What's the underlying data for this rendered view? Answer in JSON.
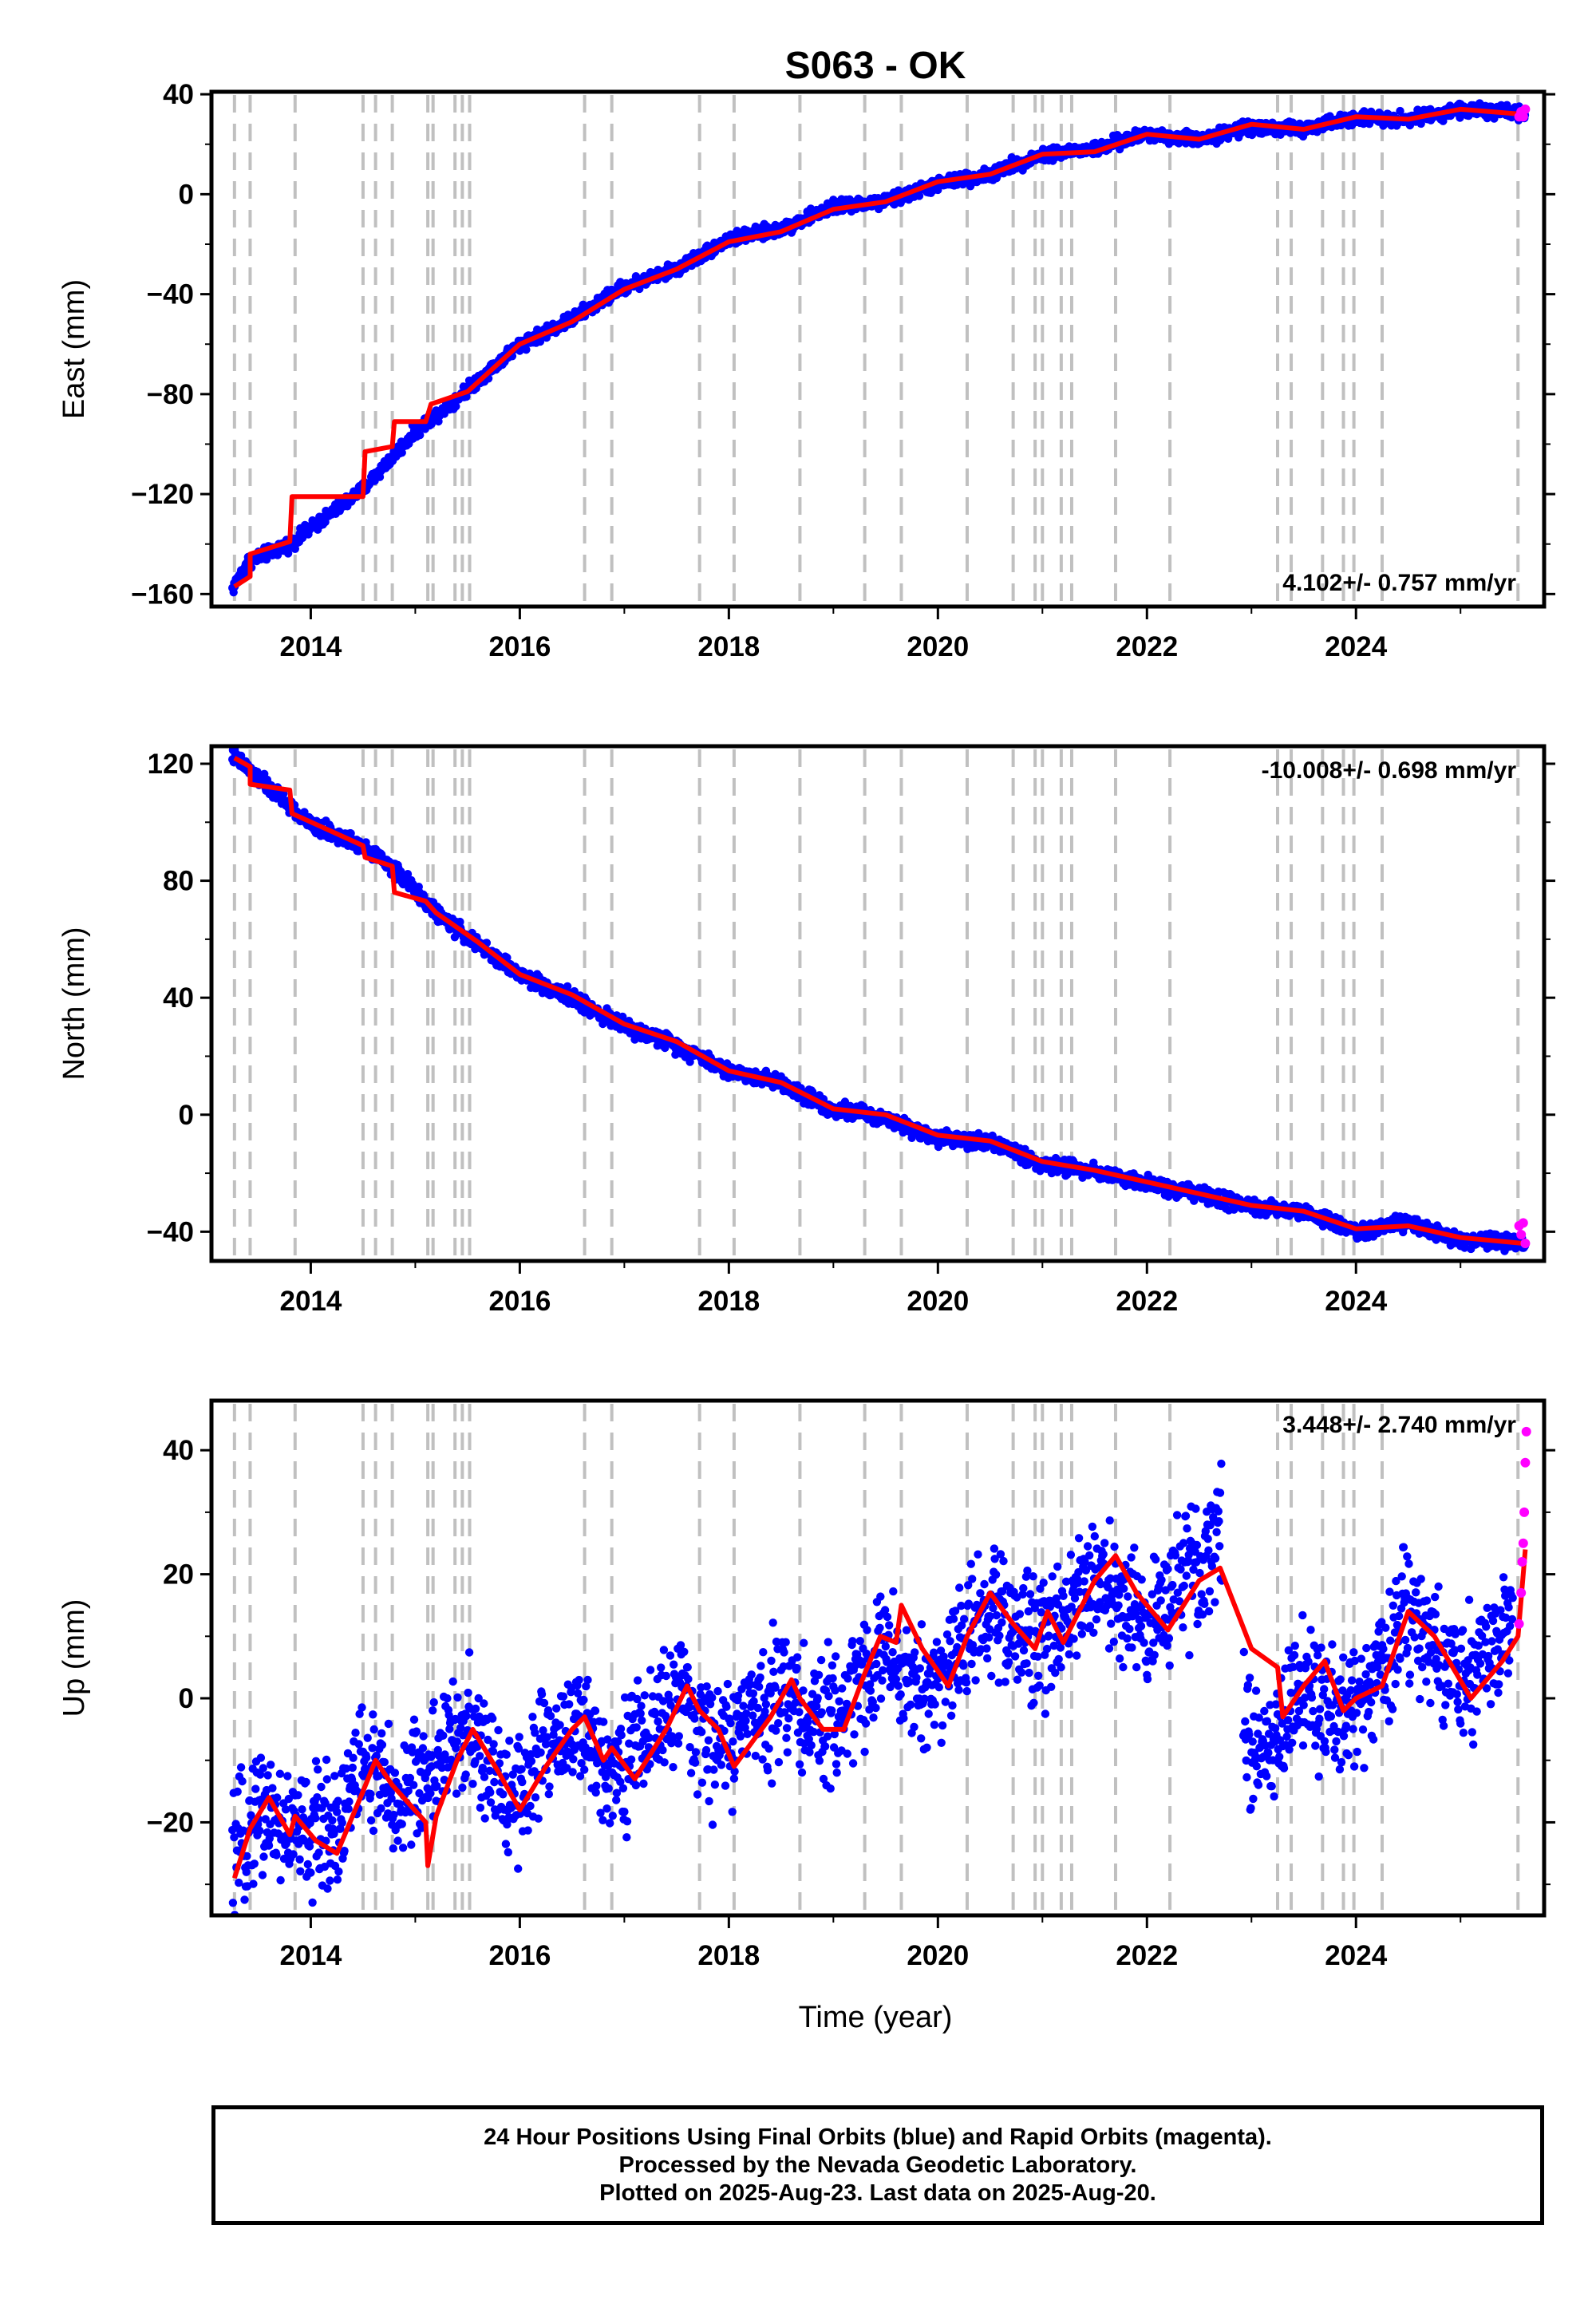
{
  "title": "S063 - OK",
  "xlabel": "Time (year)",
  "footer": {
    "line1": "24 Hour Positions Using Final Orbits (blue) and Rapid Orbits (magenta).",
    "line2": "Processed by the Nevada Geodetic Laboratory.",
    "line3": "Plotted on 2025-Aug-23. Last data on 2025-Aug-20."
  },
  "colors": {
    "final": "#0000ff",
    "rapid": "#ff00ff",
    "model": "#ff0000",
    "event_line": "#c0c0c0"
  },
  "chart_data": [
    {
      "type": "scatter",
      "component": "East",
      "ylabel": "East (mm)",
      "rate_label": "4.102+/- 0.757 mm/yr",
      "xlim": [
        2013.05,
        2025.8
      ],
      "ylim": [
        -165,
        41
      ],
      "xticks": [
        2014,
        2016,
        2018,
        2020,
        2022,
        2024
      ],
      "yticks": [
        -160,
        -120,
        -80,
        -40,
        0,
        40
      ],
      "final_orbit_trend": {
        "x": [
          2013.25,
          2013.4,
          2013.8,
          2014.5,
          2015.0,
          2015.5,
          2016.0,
          2016.5,
          2017.0,
          2017.5,
          2018.0,
          2018.5,
          2019.0,
          2019.5,
          2020.0,
          2020.5,
          2021.0,
          2021.5,
          2022.0,
          2022.5,
          2023.0,
          2023.5,
          2024.0,
          2024.5,
          2025.0,
          2025.62
        ],
        "y": [
          -158,
          -147,
          -140,
          -118,
          -95,
          -78,
          -60,
          -50,
          -37,
          -30,
          -18,
          -14,
          -5,
          -3,
          4,
          8,
          16,
          18,
          24,
          22,
          27,
          26,
          31,
          30,
          34,
          32
        ]
      },
      "model_fit": {
        "x": [
          2013.27,
          2013.42,
          2013.42,
          2013.8,
          2013.82,
          2014.5,
          2014.52,
          2014.78,
          2014.8,
          2015.1,
          2015.15,
          2015.5,
          2016.0,
          2016.5,
          2017.0,
          2017.5,
          2018.0,
          2018.5,
          2019.0,
          2019.5,
          2020.0,
          2020.5,
          2021.0,
          2021.5,
          2022.0,
          2022.5,
          2023.0,
          2023.5,
          2024.0,
          2024.5,
          2025.0,
          2025.6
        ],
        "y": [
          -157,
          -153,
          -144,
          -139,
          -121,
          -121,
          -103,
          -101,
          -91,
          -91,
          -84,
          -79,
          -60,
          -51,
          -38,
          -30,
          -19,
          -15,
          -6,
          -3,
          5,
          8,
          16,
          17,
          24,
          22,
          28,
          26,
          31,
          30,
          34,
          32
        ]
      },
      "rapid_orbit": {
        "x": [
          2025.56,
          2025.58,
          2025.6,
          2025.62
        ],
        "y": [
          31,
          33,
          31,
          34
        ]
      },
      "event_lines": [
        2013.27,
        2013.42,
        2013.85,
        2014.5,
        2014.62,
        2014.78,
        2015.12,
        2015.17,
        2015.38,
        2015.45,
        2015.52,
        2016.62,
        2016.88,
        2017.72,
        2018.05,
        2018.68,
        2019.3,
        2019.65,
        2020.28,
        2020.72,
        2020.93,
        2021.0,
        2021.18,
        2021.28,
        2021.7,
        2022.22,
        2023.25,
        2023.38,
        2023.68,
        2023.88,
        2023.98,
        2024.25,
        2025.55
      ]
    },
    {
      "type": "scatter",
      "component": "North",
      "ylabel": "North (mm)",
      "rate_label": "-10.008+/- 0.698 mm/yr",
      "xlim": [
        2013.05,
        2025.8
      ],
      "ylim": [
        -50,
        126
      ],
      "xticks": [
        2014,
        2016,
        2018,
        2020,
        2022,
        2024
      ],
      "yticks": [
        -40,
        0,
        40,
        80,
        120
      ],
      "final_orbit_trend": {
        "x": [
          2013.25,
          2013.5,
          2014.0,
          2014.5,
          2014.8,
          2015.2,
          2015.6,
          2016.0,
          2016.5,
          2017.0,
          2017.5,
          2018.0,
          2018.5,
          2019.0,
          2019.5,
          2020.0,
          2020.5,
          2021.0,
          2021.5,
          2022.0,
          2022.5,
          2023.0,
          2023.5,
          2024.0,
          2024.5,
          2025.0,
          2025.62
        ],
        "y": [
          123,
          115,
          99,
          92,
          84,
          69,
          58,
          48,
          40,
          30,
          24,
          15,
          11,
          2,
          -1,
          -8,
          -9,
          -17,
          -19,
          -24,
          -27,
          -32,
          -33,
          -40,
          -37,
          -43,
          -44
        ]
      },
      "model_fit": {
        "x": [
          2013.27,
          2013.42,
          2013.42,
          2013.8,
          2013.82,
          2014.5,
          2014.52,
          2014.78,
          2014.8,
          2015.1,
          2015.2,
          2015.6,
          2016.0,
          2016.5,
          2017.0,
          2017.5,
          2018.0,
          2018.5,
          2019.0,
          2019.5,
          2020.0,
          2020.5,
          2021.0,
          2021.5,
          2022.0,
          2022.5,
          2023.0,
          2023.5,
          2024.0,
          2024.5,
          2025.0,
          2025.6
        ],
        "y": [
          122,
          119,
          113,
          111,
          103,
          92,
          88,
          85,
          76,
          73,
          69,
          59,
          48,
          41,
          31,
          25,
          15,
          11,
          2,
          0,
          -7,
          -9,
          -16,
          -19,
          -23,
          -27,
          -31,
          -33,
          -39,
          -38,
          -42,
          -44
        ]
      },
      "rapid_orbit": {
        "x": [
          2025.56,
          2025.58,
          2025.6,
          2025.62
        ],
        "y": [
          -38,
          -41,
          -37,
          -44
        ]
      },
      "event_lines": [
        2013.27,
        2013.42,
        2013.85,
        2014.5,
        2014.62,
        2014.78,
        2015.12,
        2015.17,
        2015.38,
        2015.45,
        2015.52,
        2016.62,
        2016.88,
        2017.72,
        2018.05,
        2018.68,
        2019.3,
        2019.65,
        2020.28,
        2020.72,
        2020.93,
        2021.0,
        2021.18,
        2021.28,
        2021.7,
        2022.22,
        2023.25,
        2023.38,
        2023.68,
        2023.88,
        2023.98,
        2024.25,
        2025.55
      ]
    },
    {
      "type": "scatter",
      "component": "Up",
      "ylabel": "Up (mm)",
      "rate_label": "3.448+/- 2.740 mm/yr",
      "xlim": [
        2013.05,
        2025.8
      ],
      "ylim": [
        -35,
        48
      ],
      "xticks": [
        2014,
        2016,
        2018,
        2020,
        2022,
        2024
      ],
      "yticks": [
        -20,
        0,
        20,
        40
      ],
      "final_orbit_trend": {
        "x": [
          2013.25,
          2013.5,
          2013.75,
          2014.0,
          2014.25,
          2014.5,
          2014.8,
          2015.2,
          2015.5,
          2015.8,
          2016.0,
          2016.25,
          2016.5,
          2016.8,
          2017.0,
          2017.25,
          2017.5,
          2017.8,
          2018.0,
          2018.25,
          2018.5,
          2018.8,
          2019.0,
          2019.25,
          2019.5,
          2019.8,
          2020.0,
          2020.25,
          2020.5,
          2020.8,
          2021.0,
          2021.25,
          2021.5,
          2021.8,
          2022.0,
          2022.25,
          2022.5,
          2022.7,
          2022.9,
          2023.1,
          2023.3,
          2023.5,
          2023.75,
          2024.0,
          2024.25,
          2024.5,
          2024.75,
          2025.0,
          2025.25,
          2025.5
        ],
        "y": [
          -28,
          -17,
          -21,
          -22,
          -20,
          -10,
          -17,
          -10,
          -5,
          -14,
          -15,
          -8,
          -4,
          -10,
          -10,
          -5,
          0,
          -7,
          -7,
          -2,
          2,
          -4,
          -4,
          3,
          8,
          1,
          3,
          9,
          15,
          10,
          10,
          15,
          20,
          14,
          12,
          17,
          21,
          30,
          -5,
          -8,
          -4,
          2,
          -4,
          -2,
          4,
          15,
          6,
          2,
          6,
          13
        ]
      },
      "model_fit": {
        "x": [
          2013.27,
          2013.42,
          2013.6,
          2013.8,
          2013.85,
          2014.05,
          2014.25,
          2014.5,
          2014.62,
          2014.78,
          2015.1,
          2015.12,
          2015.2,
          2015.4,
          2015.55,
          2015.8,
          2016.0,
          2016.25,
          2016.5,
          2016.62,
          2016.8,
          2016.88,
          2017.1,
          2017.4,
          2017.6,
          2017.72,
          2017.9,
          2018.05,
          2018.4,
          2018.6,
          2018.68,
          2018.9,
          2019.1,
          2019.3,
          2019.45,
          2019.6,
          2019.65,
          2019.85,
          2020.1,
          2020.28,
          2020.5,
          2020.72,
          2020.93,
          2021.05,
          2021.2,
          2021.5,
          2021.7,
          2021.9,
          2022.2,
          2022.5,
          2022.7,
          2023.0,
          2023.25,
          2023.3,
          2023.5,
          2023.7,
          2023.88,
          2024.0,
          2024.25,
          2024.5,
          2024.75,
          2025.1,
          2025.4,
          2025.55,
          2025.62
        ],
        "y": [
          -29,
          -21,
          -16,
          -22,
          -19,
          -23,
          -25,
          -15,
          -10,
          -14,
          -20,
          -27,
          -19,
          -10,
          -5,
          -12,
          -18,
          -11,
          -5,
          -3,
          -10,
          -8,
          -13,
          -5,
          2,
          -2,
          -5,
          -11,
          -3,
          3,
          0,
          -5,
          -5,
          4,
          10,
          9,
          15,
          8,
          2,
          10,
          17,
          12,
          8,
          14,
          9,
          19,
          23,
          17,
          11,
          19,
          21,
          8,
          5,
          -3,
          2,
          6,
          -2,
          0,
          2,
          14,
          10,
          0,
          6,
          10,
          24
        ]
      },
      "rapid_orbit": {
        "x": [
          2025.56,
          2025.58,
          2025.59,
          2025.6,
          2025.61,
          2025.62,
          2025.63
        ],
        "y": [
          12,
          17,
          22,
          25,
          30,
          38,
          43
        ]
      },
      "event_lines": [
        2013.27,
        2013.42,
        2013.85,
        2014.5,
        2014.62,
        2014.78,
        2015.12,
        2015.17,
        2015.38,
        2015.45,
        2015.52,
        2016.62,
        2016.88,
        2017.72,
        2018.05,
        2018.68,
        2019.3,
        2019.65,
        2020.28,
        2020.72,
        2020.93,
        2021.0,
        2021.18,
        2021.28,
        2021.7,
        2022.22,
        2023.25,
        2023.38,
        2023.68,
        2023.88,
        2023.98,
        2024.25,
        2025.55
      ]
    }
  ]
}
